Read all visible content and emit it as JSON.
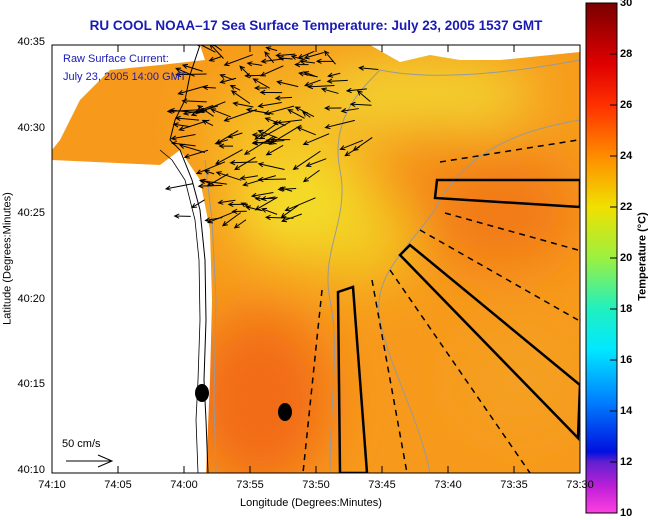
{
  "title": "RU COOL  NOAA–17  Sea Surface Temperature:  July 23, 2005 1537 GMT",
  "annotation": {
    "line1": "Raw Surface Current:",
    "line2": "July 23, 2005 14:00 GMT"
  },
  "scale_label": "50 cm/s",
  "x_axis": {
    "title": "Longitude (Degrees:Minutes)",
    "ticks": [
      "74:10",
      "74:05",
      "74:00",
      "73:55",
      "73:50",
      "73:45",
      "73:40",
      "73:35",
      "73:30"
    ]
  },
  "y_axis": {
    "title": "Latitude (Degrees:Minutes)",
    "ticks": [
      "40:35",
      "40:30",
      "40:25",
      "40:20",
      "40:15",
      "40:10"
    ]
  },
  "colorbar": {
    "title": "Temperature (°C)",
    "min": 10,
    "max": 30,
    "ticks": [
      "30",
      "28",
      "26",
      "24",
      "22",
      "20",
      "18",
      "16",
      "14",
      "12",
      "10"
    ]
  },
  "colors": {
    "title": "#1a1ab4",
    "sst_base": "#f79a1c",
    "sst_warm": "#f06a10",
    "sst_cool": "#f2d824"
  }
}
